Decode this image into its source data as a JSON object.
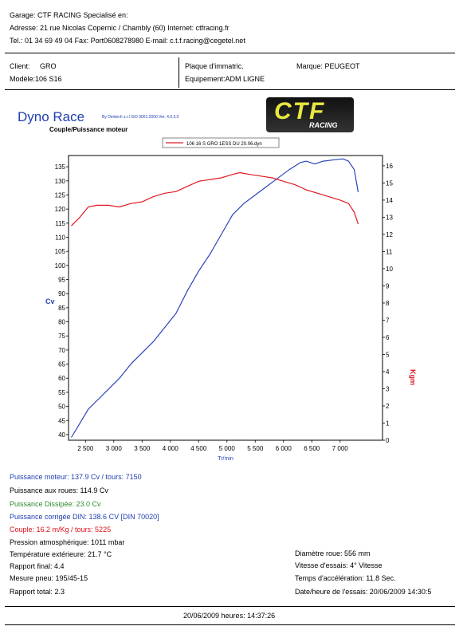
{
  "garage": {
    "line1": "Garage: CTF RACING   Specialisé en:",
    "line2": "Adresse: 21 rue Nicolas Copernic / Chambly (60) Internet: ctfracing.fr",
    "line3": "Tel.: 01 34 69 49 04 Fax: Port0608278980 E-mail: c.t.f.racing@cegetel.net"
  },
  "client": {
    "client_label": "Client:",
    "client_value": "GRO",
    "modele": "Modèle:106 S16",
    "plaque": "Plaque d'immatric.",
    "equipement": "Equipement:ADM LIGNE",
    "marque": "Marque: PEUGEOT"
  },
  "header": {
    "title": "Dyno Race",
    "subtitle": "Couple/Puissance moteur",
    "byline": "By Dimtech s.r.l  ISO 9001:2000  Ver. 4.0.3.0",
    "logo_text": "CTF",
    "logo_sub": "RACING"
  },
  "chart_data": {
    "type": "line",
    "legend": "106 16 S GRO 1ESS DU 20.06.dyn",
    "xlabel": "Tr/min",
    "ylabel_left": "Cv",
    "ylabel_right": "Kgm",
    "xlim": [
      2200,
      7750
    ],
    "ylim_left": [
      38,
      139
    ],
    "ylim_right": [
      0,
      16.6
    ],
    "x_ticks": [
      "2 500",
      "3 000",
      "3 500",
      "4 000",
      "4 500",
      "5 000",
      "5 500",
      "6 000",
      "6 500",
      "7 000"
    ],
    "x_tick_values": [
      2500,
      3000,
      3500,
      4000,
      4500,
      5000,
      5500,
      6000,
      6500,
      7000
    ],
    "y_ticks_left": [
      40,
      45,
      50,
      55,
      60,
      65,
      70,
      75,
      80,
      85,
      90,
      95,
      100,
      105,
      110,
      115,
      120,
      125,
      130,
      135
    ],
    "y_ticks_right": [
      0,
      1,
      2,
      3,
      4,
      5,
      6,
      7,
      8,
      9,
      10,
      11,
      12,
      13,
      14,
      15,
      16
    ],
    "grid": false,
    "series": [
      {
        "axis": "left",
        "color": "#2a44b8",
        "x": [
          2250,
          2400,
          2550,
          2700,
          2900,
          3100,
          3300,
          3500,
          3700,
          3900,
          4100,
          4300,
          4500,
          4700,
          4900,
          5100,
          5300,
          5500,
          5700,
          5900,
          6100,
          6300,
          6400,
          6550,
          6700,
          6900,
          7050,
          7150,
          7250,
          7320
        ],
        "y": [
          39,
          44,
          49,
          52,
          56,
          60,
          65,
          69,
          73,
          78,
          83,
          91,
          98,
          104,
          111,
          118,
          122,
          125,
          128,
          131,
          134,
          136.5,
          137,
          136,
          137,
          137.5,
          137.8,
          137,
          134,
          126
        ]
      },
      {
        "axis": "right",
        "color": "#e01a24",
        "x": [
          2250,
          2400,
          2550,
          2700,
          2900,
          3100,
          3300,
          3500,
          3700,
          3900,
          4100,
          4300,
          4500,
          4700,
          4900,
          5100,
          5225,
          5400,
          5600,
          5800,
          6000,
          6200,
          6400,
          6600,
          6800,
          7000,
          7150,
          7250,
          7320
        ],
        "y": [
          12.5,
          13.0,
          13.6,
          13.7,
          13.7,
          13.6,
          13.8,
          13.9,
          14.2,
          14.4,
          14.5,
          14.8,
          15.1,
          15.2,
          15.3,
          15.5,
          15.6,
          15.5,
          15.4,
          15.3,
          15.1,
          14.9,
          14.6,
          14.4,
          14.2,
          14.0,
          13.8,
          13.3,
          12.6
        ]
      }
    ]
  },
  "results": {
    "puissance_moteur": "Puissance moteur:   137.9 Cv / tours: 7150",
    "puissance_roues": "Puissance aux roues:      114.9 Cv",
    "puissance_dissipee": "Puissance Dissipée:       23.0 Cv",
    "puissance_din": "Puissance corrigée DIN:  138.6 CV  [DIN 70020]",
    "couple": "Couple:  16.2  m/Kg / tours: 5225",
    "pression": "Pression atmosphérique:   1011 mbar",
    "temperature": "Température extérieure:    21.7 °C",
    "rapport_final": "Rapport final: 4.4",
    "mesure_pneu": "Mesure pneu:  195/45-15",
    "rapport_total": "Rapport total: 2.3",
    "diametre": "Diamètre roue:   556 mm",
    "vitesse": "Vitesse d'essais:   4° Vitesse",
    "temps": "Temps d'accélération: 11.8 Sec.",
    "date_essais": "Date/heure de l'essais: 20/06/2009 14:30:5"
  },
  "footer": {
    "date": "20/06/2009  heures:   14:37:26"
  }
}
